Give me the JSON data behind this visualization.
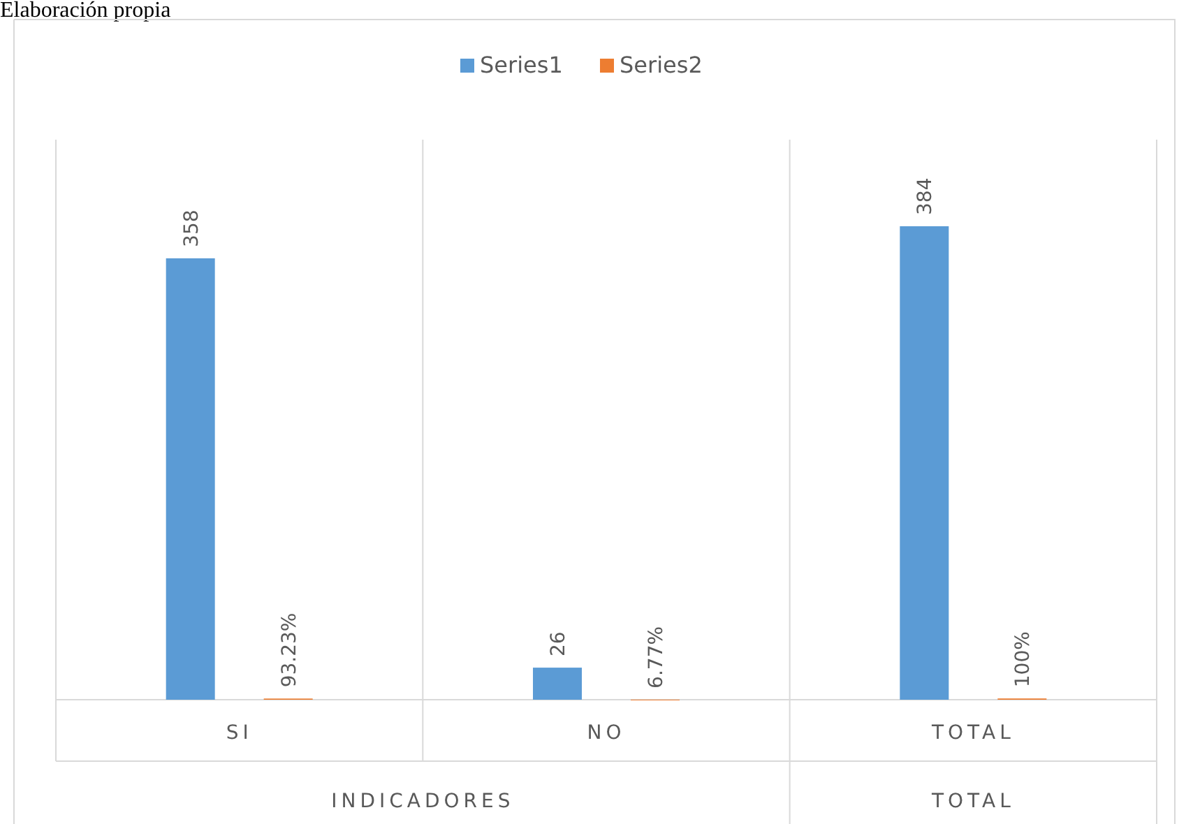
{
  "chart_data": {
    "type": "bar",
    "categories": [
      "SI",
      "NO",
      "TOTAL"
    ],
    "series": [
      {
        "name": "Series1",
        "color": "#5b9bd5",
        "values": [
          358,
          26,
          384
        ],
        "value_labels": [
          "358",
          "26",
          "384"
        ]
      },
      {
        "name": "Series2",
        "color": "#ed7d31",
        "values": [
          0.9323,
          0.0677,
          1
        ],
        "value_labels": [
          "93.23%",
          "6.77%",
          "100%"
        ]
      }
    ],
    "legend": "top",
    "grid": "x",
    "annotations": [
      "Elaboración propia",
      "INDICADORES",
      "TOTAL"
    ]
  }
}
